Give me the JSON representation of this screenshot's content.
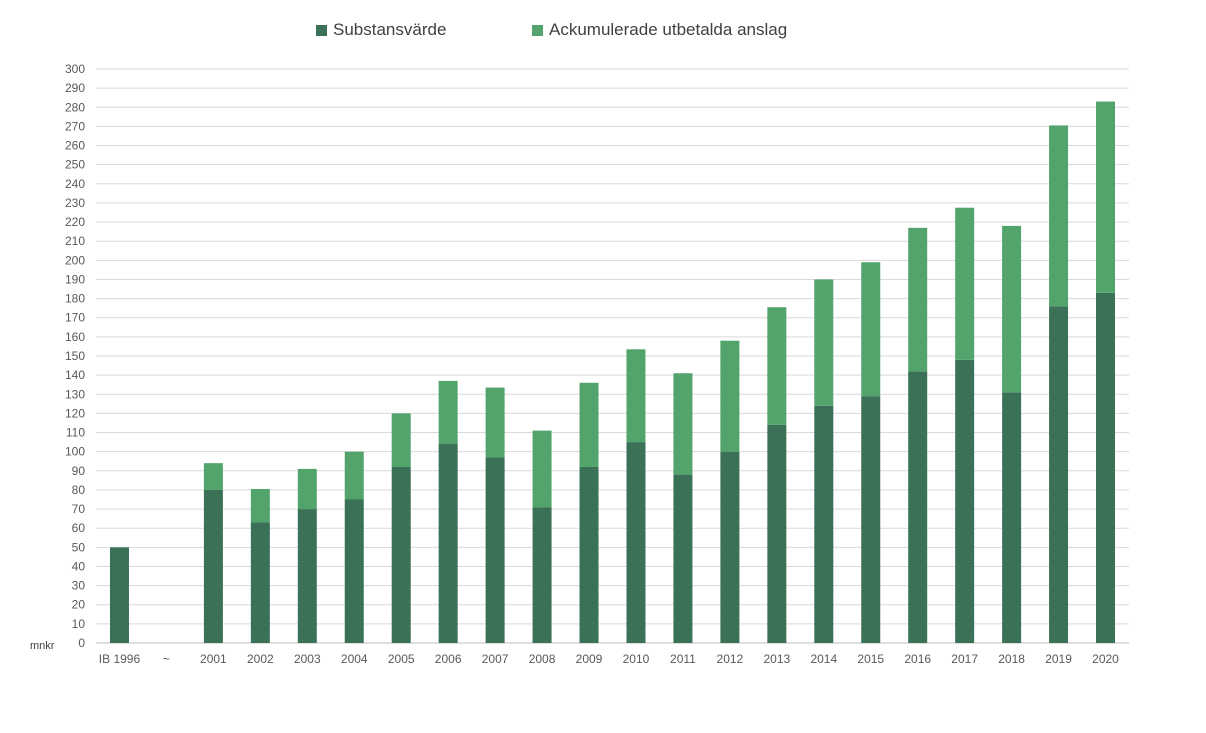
{
  "chart_data": {
    "type": "bar",
    "stacked": true,
    "categories": [
      "IB 1996",
      "~",
      "2001",
      "2002",
      "2003",
      "2004",
      "2005",
      "2006",
      "2007",
      "2008",
      "2009",
      "2010",
      "2011",
      "2012",
      "2013",
      "2014",
      "2015",
      "2016",
      "2017",
      "2018",
      "2019",
      "2020"
    ],
    "series": [
      {
        "name": "Substansvärde",
        "color": "#3a7157",
        "values": [
          50,
          null,
          80,
          63,
          70,
          75,
          92,
          104,
          97,
          71,
          92,
          105,
          88,
          100,
          114,
          124,
          129,
          142,
          148,
          131,
          176,
          183
        ]
      },
      {
        "name": "Ackumulerade utbetalda anslag",
        "color": "#52a46c",
        "values": [
          0,
          null,
          14,
          17.5,
          21,
          25,
          28,
          33,
          36.5,
          40,
          44,
          48.5,
          53,
          58,
          61.5,
          66,
          70,
          75,
          79.5,
          87,
          94.5,
          100
        ]
      }
    ],
    "ylim": [
      0,
      300
    ],
    "ytick_step": 10,
    "ylabel": "mnkr",
    "grid": true,
    "legend_position": "top"
  }
}
